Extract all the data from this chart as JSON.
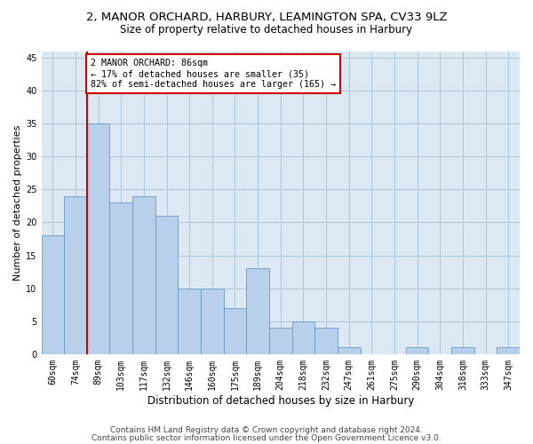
{
  "title1": "2, MANOR ORCHARD, HARBURY, LEAMINGTON SPA, CV33 9LZ",
  "title2": "Size of property relative to detached houses in Harbury",
  "xlabel": "Distribution of detached houses by size in Harbury",
  "ylabel": "Number of detached properties",
  "categories": [
    "60sqm",
    "74sqm",
    "89sqm",
    "103sqm",
    "117sqm",
    "132sqm",
    "146sqm",
    "160sqm",
    "175sqm",
    "189sqm",
    "204sqm",
    "218sqm",
    "232sqm",
    "247sqm",
    "261sqm",
    "275sqm",
    "290sqm",
    "304sqm",
    "318sqm",
    "333sqm",
    "347sqm"
  ],
  "values": [
    18,
    24,
    35,
    23,
    24,
    21,
    10,
    10,
    7,
    13,
    4,
    5,
    4,
    1,
    0,
    0,
    1,
    0,
    1,
    0,
    1
  ],
  "bar_color": "#b8d0ea",
  "bar_edge_color": "#6699cc",
  "vline_color": "#cc0000",
  "vline_x": 1.5,
  "annotation_line1": "2 MANOR ORCHARD: 86sqm",
  "annotation_line2": "← 17% of detached houses are smaller (35)",
  "annotation_line3": "82% of semi-detached houses are larger (165) →",
  "annotation_box_facecolor": "#ffffff",
  "annotation_box_edgecolor": "#cc0000",
  "ylim": [
    0,
    46
  ],
  "yticks": [
    0,
    5,
    10,
    15,
    20,
    25,
    30,
    35,
    40,
    45
  ],
  "fig_bg_color": "#ffffff",
  "plot_bg_color": "#dce9f5",
  "grid_color": "#b0c4d8",
  "title1_fontsize": 9.5,
  "title2_fontsize": 8.5,
  "tick_fontsize": 7,
  "ylabel_fontsize": 8,
  "xlabel_fontsize": 8.5,
  "footer1": "Contains HM Land Registry data © Crown copyright and database right 2024.",
  "footer2": "Contains public sector information licensed under the Open Government Licence v3.0.",
  "footer_fontsize": 6.5
}
